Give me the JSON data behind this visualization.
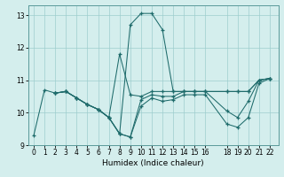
{
  "xlabel": "Humidex (Indice chaleur)",
  "background_color": "#d4eeed",
  "line_color": "#1e6b6b",
  "xlim": [
    -0.5,
    22.8
  ],
  "ylim": [
    9.0,
    13.3
  ],
  "yticks": [
    9,
    10,
    11,
    12,
    13
  ],
  "xticks": [
    0,
    1,
    2,
    3,
    4,
    5,
    6,
    7,
    8,
    9,
    10,
    11,
    12,
    13,
    14,
    15,
    16,
    18,
    19,
    20,
    21,
    22
  ],
  "lines": [
    {
      "x": [
        0,
        1,
        2,
        3,
        4,
        5,
        6,
        7,
        8,
        9,
        10,
        11,
        12,
        13,
        14,
        15,
        16,
        18,
        19,
        20,
        21,
        22
      ],
      "y": [
        9.3,
        10.7,
        10.6,
        10.65,
        10.45,
        10.25,
        10.1,
        9.85,
        9.35,
        12.7,
        13.05,
        13.05,
        12.55,
        10.65,
        10.65,
        10.65,
        10.65,
        10.65,
        10.65,
        10.65,
        11.0,
        11.05
      ]
    },
    {
      "x": [
        2,
        3,
        4,
        5,
        6,
        7,
        8,
        9,
        10,
        11,
        12,
        13,
        14,
        15,
        16,
        18,
        19,
        20,
        21,
        22
      ],
      "y": [
        10.6,
        10.65,
        10.45,
        10.25,
        10.1,
        9.85,
        11.8,
        10.55,
        10.5,
        10.65,
        10.65,
        10.65,
        10.65,
        10.65,
        10.65,
        10.65,
        10.65,
        10.65,
        11.0,
        11.05
      ]
    },
    {
      "x": [
        2,
        3,
        4,
        5,
        6,
        7,
        8,
        9,
        10,
        11,
        12,
        13,
        14,
        15,
        16,
        18,
        19,
        20,
        21,
        22
      ],
      "y": [
        10.6,
        10.65,
        10.45,
        10.25,
        10.1,
        9.85,
        9.35,
        9.25,
        10.4,
        10.55,
        10.5,
        10.5,
        10.65,
        10.65,
        10.65,
        10.05,
        9.85,
        10.35,
        11.0,
        11.05
      ]
    },
    {
      "x": [
        2,
        3,
        4,
        5,
        6,
        7,
        8,
        9,
        10,
        11,
        12,
        13,
        14,
        15,
        16,
        18,
        19,
        20,
        21,
        22
      ],
      "y": [
        10.6,
        10.65,
        10.45,
        10.25,
        10.1,
        9.85,
        9.35,
        9.25,
        10.2,
        10.45,
        10.35,
        10.4,
        10.55,
        10.55,
        10.55,
        9.65,
        9.55,
        9.85,
        10.9,
        11.05
      ]
    }
  ]
}
